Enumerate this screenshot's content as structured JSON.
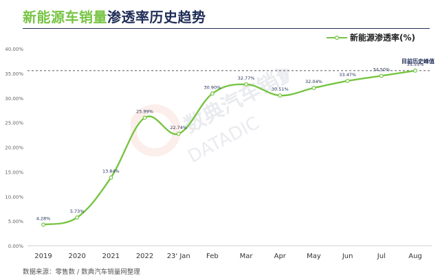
{
  "header": {
    "title_part1": "新能源车销量",
    "title_part2": "渗透率历史趋势"
  },
  "legend": {
    "label": "新能源渗透率(%)"
  },
  "peak_note": "目前历史峰值",
  "source_note": "数据来源：零售数  /  数典汽车销量网整理",
  "watermark": {
    "cn": "数典汽车销量网",
    "en": "DATADIC"
  },
  "chart_data": {
    "type": "line",
    "title": "新能源车销量渗透率历史趋势",
    "categories": [
      "2019",
      "2020",
      "2021",
      "2022",
      "23' Jan",
      "Feb",
      "Mar",
      "Apr",
      "May",
      "Jun",
      "Jul",
      "Aug"
    ],
    "series": [
      {
        "name": "新能源渗透率(%)",
        "values": [
          4.28,
          5.73,
          13.84,
          25.99,
          22.74,
          30.9,
          32.77,
          30.51,
          32.04,
          33.47,
          34.5,
          35.55
        ],
        "labels": [
          "4.28%",
          "5.73%",
          "13.84%",
          "25.99%",
          "22.74%",
          "30.90%",
          "32.77%",
          "30.51%",
          "32.04%",
          "33.47%",
          "34.50%",
          "35.55%"
        ]
      }
    ],
    "y_ticks": [
      0,
      5,
      10,
      15,
      20,
      25,
      30,
      35,
      40
    ],
    "y_tick_labels": [
      "0.00%",
      "5.00%",
      "10.00%",
      "15.00%",
      "20.00%",
      "25.00%",
      "30.00%",
      "35.00%",
      "40.00%"
    ],
    "ylim": [
      0,
      40
    ],
    "reference_line": 35.55,
    "grid": false,
    "legend_position": "top-right",
    "line_color": "#76c442"
  }
}
